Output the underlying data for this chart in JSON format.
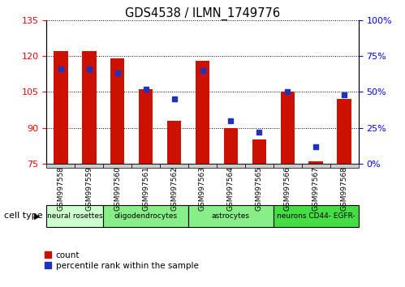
{
  "title": "GDS4538 / ILMN_1749776",
  "samples": [
    "GSM997558",
    "GSM997559",
    "GSM997560",
    "GSM997561",
    "GSM997562",
    "GSM997563",
    "GSM997564",
    "GSM997565",
    "GSM997566",
    "GSM997567",
    "GSM997568"
  ],
  "counts": [
    122,
    122,
    119,
    106,
    93,
    118,
    90,
    85,
    105,
    76,
    102
  ],
  "percentiles": [
    66,
    66,
    63,
    52,
    45,
    65,
    30,
    22,
    50,
    12,
    48
  ],
  "ylim_left": [
    75,
    135
  ],
  "ylim_right": [
    0,
    100
  ],
  "yticks_left": [
    75,
    90,
    105,
    120,
    135
  ],
  "yticks_right": [
    0,
    25,
    50,
    75,
    100
  ],
  "ytick_labels_right": [
    "0%",
    "25%",
    "50%",
    "75%",
    "100%"
  ],
  "bar_color": "#CC1100",
  "square_color": "#2233BB",
  "bar_width": 0.5,
  "group_spans": [
    {
      "start": 0,
      "end": 2,
      "label": "neural rosettes",
      "color": "#CCFFCC"
    },
    {
      "start": 2,
      "end": 5,
      "label": "oligodendrocytes",
      "color": "#88EE88"
    },
    {
      "start": 5,
      "end": 8,
      "label": "astrocytes",
      "color": "#88EE88"
    },
    {
      "start": 8,
      "end": 11,
      "label": "neurons CD44- EGFR-",
      "color": "#44DD44"
    }
  ],
  "cell_type_label": "cell type",
  "legend_count_label": "count",
  "legend_percentile_label": "percentile rank within the sample",
  "bar_bottom": 75,
  "left_axis_color": "red",
  "right_axis_color": "blue"
}
